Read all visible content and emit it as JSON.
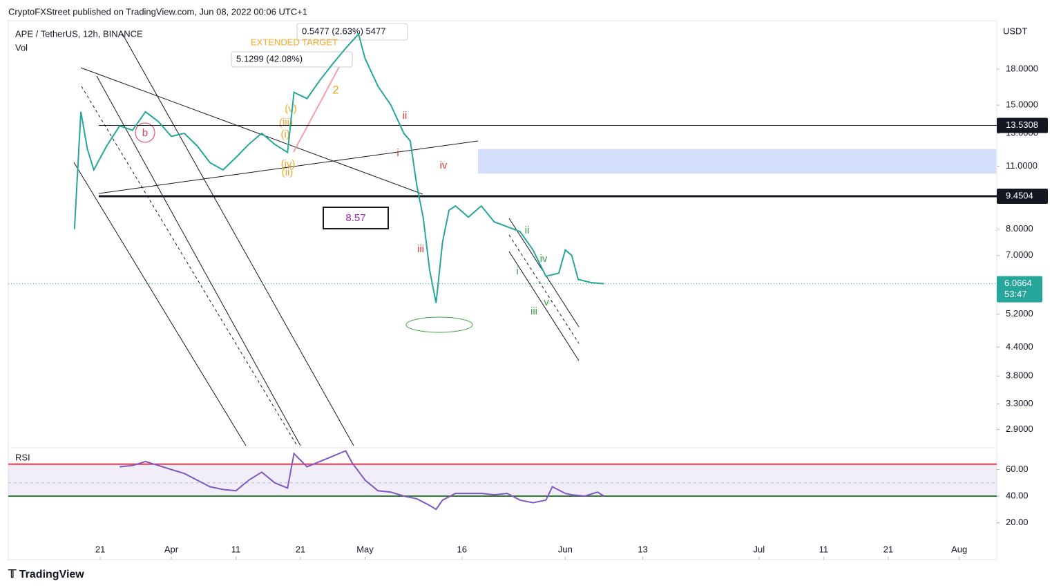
{
  "header": {
    "publisher": "CryptoFXStreet published on TradingView.com, Jun 08, 2022 00:06 UTC+1",
    "symbol": "APE / TetherUS, 12h, BINANCE",
    "volume_label": "Vol",
    "footer": "TradingView"
  },
  "chart_data": [
    {
      "type": "line",
      "name": "APE / TetherUS",
      "color": "#26a69a",
      "log_scale": true,
      "axis_unit": "USDT",
      "x": [
        "2022-03-17",
        "2022-03-18",
        "2022-03-19",
        "2022-03-20",
        "2022-03-22",
        "2022-03-24",
        "2022-03-26",
        "2022-03-28",
        "2022-03-30",
        "2022-04-01",
        "2022-04-03",
        "2022-04-05",
        "2022-04-07",
        "2022-04-09",
        "2022-04-11",
        "2022-04-13",
        "2022-04-15",
        "2022-04-17",
        "2022-04-19",
        "2022-04-20",
        "2022-04-22",
        "2022-04-24",
        "2022-04-26",
        "2022-04-28",
        "2022-04-30",
        "2022-05-01",
        "2022-05-03",
        "2022-05-05",
        "2022-05-07",
        "2022-05-08",
        "2022-05-09",
        "2022-05-10",
        "2022-05-11",
        "2022-05-12",
        "2022-05-13",
        "2022-05-14",
        "2022-05-15",
        "2022-05-17",
        "2022-05-19",
        "2022-05-21",
        "2022-05-23",
        "2022-05-25",
        "2022-05-27",
        "2022-05-29",
        "2022-05-31",
        "2022-06-01",
        "2022-06-02",
        "2022-06-03",
        "2022-06-05",
        "2022-06-07"
      ],
      "values": [
        8.0,
        14.5,
        12.0,
        10.8,
        12.2,
        13.5,
        13.2,
        14.5,
        13.8,
        12.8,
        13.0,
        12.2,
        11.2,
        10.8,
        11.5,
        12.3,
        13.0,
        12.3,
        11.8,
        16.0,
        15.5,
        17.0,
        18.5,
        20.0,
        21.5,
        19.0,
        16.5,
        15.0,
        13.0,
        12.5,
        10.0,
        8.5,
        6.5,
        5.5,
        7.5,
        8.8,
        9.0,
        8.5,
        9.0,
        8.3,
        8.1,
        7.9,
        7.2,
        6.3,
        6.4,
        7.2,
        7.0,
        6.2,
        6.1,
        6.0664
      ],
      "ylim": [
        2.67,
        23
      ],
      "yticks": [
        {
          "value": 18,
          "label": "18.0000"
        },
        {
          "value": 15,
          "label": "15.0000"
        },
        {
          "value": 13,
          "label": "13.0000"
        },
        {
          "value": 11,
          "label": "11.0000"
        },
        {
          "value": 8,
          "label": "8.0000"
        },
        {
          "value": 7,
          "label": "7.0000"
        },
        {
          "value": 5.2,
          "label": "5.2000"
        },
        {
          "value": 4.4,
          "label": "4.4000"
        },
        {
          "value": 3.8,
          "label": "3.8000"
        },
        {
          "value": 3.3,
          "label": "3.3000"
        },
        {
          "value": 2.9,
          "label": "2.9000"
        }
      ],
      "levels": [
        13.5308,
        9.4504
      ],
      "last_price": 6.0664,
      "countdown": "53:47",
      "zone": [
        10.6,
        12.0
      ],
      "annotations": [
        "8.57",
        "5.1299 (42.08%)",
        "0.5477 (2.63%) 5477",
        "EXTENDED TARGET",
        "b",
        "ii",
        "i",
        "iv",
        "iii",
        "ii",
        "iv",
        "i",
        "v",
        "iii",
        "(v)",
        "(iii)",
        "(i)",
        "(iv)",
        "(ii)",
        "2"
      ]
    },
    {
      "type": "line",
      "name": "RSI",
      "color": "#7e57c2",
      "x": [
        "2022-03-24",
        "2022-03-26",
        "2022-03-28",
        "2022-03-30",
        "2022-04-01",
        "2022-04-03",
        "2022-04-05",
        "2022-04-07",
        "2022-04-09",
        "2022-04-11",
        "2022-04-13",
        "2022-04-15",
        "2022-04-17",
        "2022-04-19",
        "2022-04-20",
        "2022-04-22",
        "2022-04-24",
        "2022-04-26",
        "2022-04-28",
        "2022-04-29",
        "2022-05-01",
        "2022-05-03",
        "2022-05-05",
        "2022-05-07",
        "2022-05-09",
        "2022-05-11",
        "2022-05-12",
        "2022-05-13",
        "2022-05-15",
        "2022-05-17",
        "2022-05-19",
        "2022-05-21",
        "2022-05-23",
        "2022-05-25",
        "2022-05-27",
        "2022-05-29",
        "2022-05-30",
        "2022-06-01",
        "2022-06-02",
        "2022-06-04",
        "2022-06-06",
        "2022-06-07"
      ],
      "values": [
        62,
        63,
        66,
        63,
        60,
        57,
        52,
        47,
        45,
        44,
        52,
        58,
        50,
        46,
        72,
        62,
        66,
        70,
        74,
        65,
        52,
        44,
        43,
        40,
        38,
        33,
        30,
        37,
        42,
        42,
        42,
        41,
        42,
        37,
        35,
        37,
        47,
        42,
        41,
        40,
        43,
        40
      ],
      "ylim": [
        5.2,
        75.3
      ],
      "yticks": [
        {
          "value": 60,
          "label": "60.00"
        },
        {
          "value": 40,
          "label": "40.00"
        },
        {
          "value": 20,
          "label": "20.00"
        }
      ],
      "bands": [
        64,
        50,
        40
      ],
      "xticks": [
        {
          "value": "2022-03-21",
          "label": "21"
        },
        {
          "value": "2022-04-01",
          "label": "Apr"
        },
        {
          "value": "2022-04-11",
          "label": "11"
        },
        {
          "value": "2022-04-21",
          "label": "21"
        },
        {
          "value": "2022-05-01",
          "label": "May"
        },
        {
          "value": "2022-05-16",
          "label": "16"
        },
        {
          "value": "2022-06-01",
          "label": "Jun"
        },
        {
          "value": "2022-06-13",
          "label": "13"
        },
        {
          "value": "2022-07-01",
          "label": "Jul"
        },
        {
          "value": "2022-07-11",
          "label": "11"
        },
        {
          "value": "2022-07-21",
          "label": "21"
        },
        {
          "value": "2022-08-01",
          "label": "Aug"
        }
      ]
    }
  ]
}
